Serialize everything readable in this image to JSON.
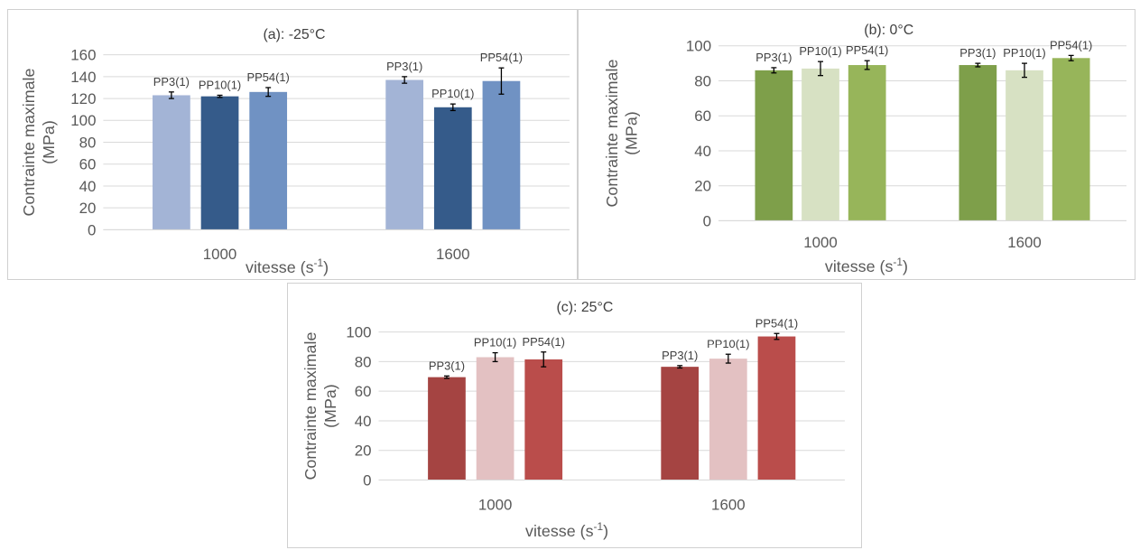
{
  "chart_data": [
    {
      "id": "a",
      "type": "bar",
      "title": "(a): -25°C",
      "ylabel_line1": "Contrainte maximale",
      "ylabel_line2": "(MPa)",
      "xlabel": "vitesse (s",
      "xlabel_sup": "-1",
      "xlabel_end": ")",
      "categories": [
        "1000",
        "1600"
      ],
      "ylim": [
        0,
        160
      ],
      "yticks": [
        "0",
        "20",
        "40",
        "60",
        "80",
        "100",
        "120",
        "140",
        "160"
      ],
      "grid": true,
      "series": [
        {
          "name": "PP3(1)",
          "color": "#a3b4d6",
          "values": [
            123,
            137
          ],
          "errors": [
            3,
            3
          ]
        },
        {
          "name": "PP10(1)",
          "color": "#355b8a",
          "values": [
            122,
            112
          ],
          "errors": [
            1,
            3
          ]
        },
        {
          "name": "PP54(1)",
          "color": "#7092c3",
          "values": [
            126,
            136
          ],
          "errors": [
            4,
            12
          ]
        }
      ]
    },
    {
      "id": "b",
      "type": "bar",
      "title": "(b): 0°C",
      "ylabel_line1": "Contrainte maximale",
      "ylabel_line2": "(MPa)",
      "xlabel": "vitesse (s",
      "xlabel_sup": "-1",
      "xlabel_end": ")",
      "categories": [
        "1000",
        "1600"
      ],
      "ylim": [
        0,
        100
      ],
      "yticks": [
        "0",
        "20",
        "40",
        "60",
        "80",
        "100"
      ],
      "grid": true,
      "series": [
        {
          "name": "PP3(1)",
          "color": "#7e9f4a",
          "values": [
            86,
            89
          ],
          "errors": [
            1.5,
            1
          ]
        },
        {
          "name": "PP10(1)",
          "color": "#d7e1c3",
          "values": [
            87,
            86
          ],
          "errors": [
            4,
            4
          ]
        },
        {
          "name": "PP54(1)",
          "color": "#97b55a",
          "values": [
            89,
            93
          ],
          "errors": [
            2.5,
            1.5
          ]
        }
      ]
    },
    {
      "id": "c",
      "type": "bar",
      "title": "(c): 25°C",
      "ylabel_line1": "Contrainte maximale",
      "ylabel_line2": "(MPa)",
      "xlabel": "vitesse (s",
      "xlabel_sup": "-1",
      "xlabel_end": ")",
      "categories": [
        "1000",
        "1600"
      ],
      "ylim": [
        0,
        100
      ],
      "yticks": [
        "0",
        "20",
        "40",
        "60",
        "80",
        "100"
      ],
      "grid": true,
      "series": [
        {
          "name": "PP3(1)",
          "color": "#a54442",
          "values": [
            69.5,
            76.5
          ],
          "errors": [
            0.8,
            0.8
          ]
        },
        {
          "name": "PP10(1)",
          "color": "#e3c1c2",
          "values": [
            83,
            82
          ],
          "errors": [
            3,
            3
          ]
        },
        {
          "name": "PP54(1)",
          "color": "#ba4d4b",
          "values": [
            81.5,
            97
          ],
          "errors": [
            5,
            2
          ]
        }
      ]
    }
  ]
}
